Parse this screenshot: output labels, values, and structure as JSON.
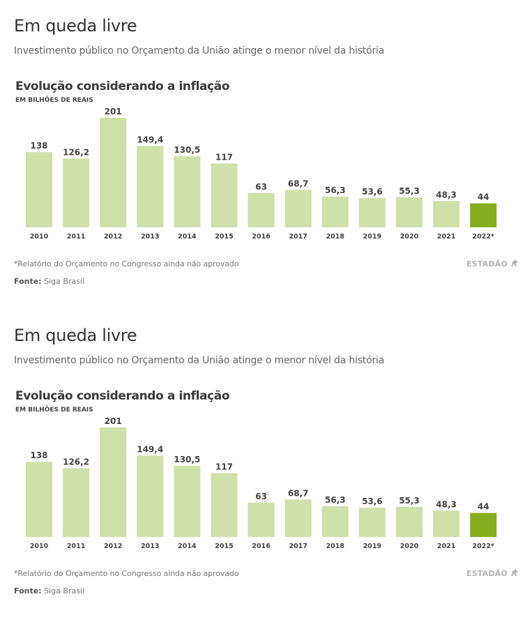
{
  "panels": [
    {
      "title": "Em queda livre",
      "subtitle": "Investimento público no Orçamento da União atinge o menor nível da história",
      "note": "*Relatório do Orçamento no Congresso ainda não aprovado",
      "source_label": "Fonte:",
      "source_value": "Siga Brasil",
      "logo": "ESTADÃO",
      "logo_icon": "horse-icon"
    },
    {
      "title": "Em queda livre",
      "subtitle": "Investimento público no Orçamento da União atinge o menor nível da história",
      "note": "*Relatório do Orçamento no Congresso ainda não aprovado",
      "source_label": "Fonte:",
      "source_value": "Siga Brasil",
      "logo": "ESTADÃO",
      "logo_icon": "horse-icon"
    }
  ],
  "chart_data": [
    {
      "type": "bar",
      "title": "Evolução considerando a inflação",
      "ylabel": "EM BILHÕES DE REAIS",
      "categories": [
        "2010",
        "2011",
        "2012",
        "2013",
        "2014",
        "2015",
        "2016",
        "2017",
        "2018",
        "2019",
        "2020",
        "2021",
        "2022*"
      ],
      "values": [
        138,
        126.2,
        201,
        149.4,
        130.5,
        117,
        63,
        68.7,
        56.3,
        53.6,
        55.3,
        48.3,
        44
      ],
      "value_labels": [
        "138",
        "126,2",
        "201",
        "149,4",
        "130,5",
        "117",
        "63",
        "68,7",
        "56,3",
        "53,6",
        "55,3",
        "48,3",
        "44"
      ],
      "ylim": [
        0,
        201
      ],
      "grid": false,
      "colors": {
        "default": "#cfe0a8",
        "highlight": "#86ad1e"
      },
      "highlight_index": 12
    },
    {
      "type": "bar",
      "title": "Evolução considerando a inflação",
      "ylabel": "EM BILHÕES DE REAIS",
      "categories": [
        "2010",
        "2011",
        "2012",
        "2013",
        "2014",
        "2015",
        "2016",
        "2017",
        "2018",
        "2019",
        "2020",
        "2021",
        "2022*"
      ],
      "values": [
        138,
        126.2,
        201,
        149.4,
        130.5,
        117,
        63,
        68.7,
        56.3,
        53.6,
        55.3,
        48.3,
        44
      ],
      "value_labels": [
        "138",
        "126,2",
        "201",
        "149,4",
        "130,5",
        "117",
        "63",
        "68,7",
        "56,3",
        "53,6",
        "55,3",
        "48,3",
        "44"
      ],
      "ylim": [
        0,
        201
      ],
      "grid": false,
      "colors": {
        "default": "#cfe0a8",
        "highlight": "#86ad1e"
      },
      "highlight_index": 12
    }
  ]
}
